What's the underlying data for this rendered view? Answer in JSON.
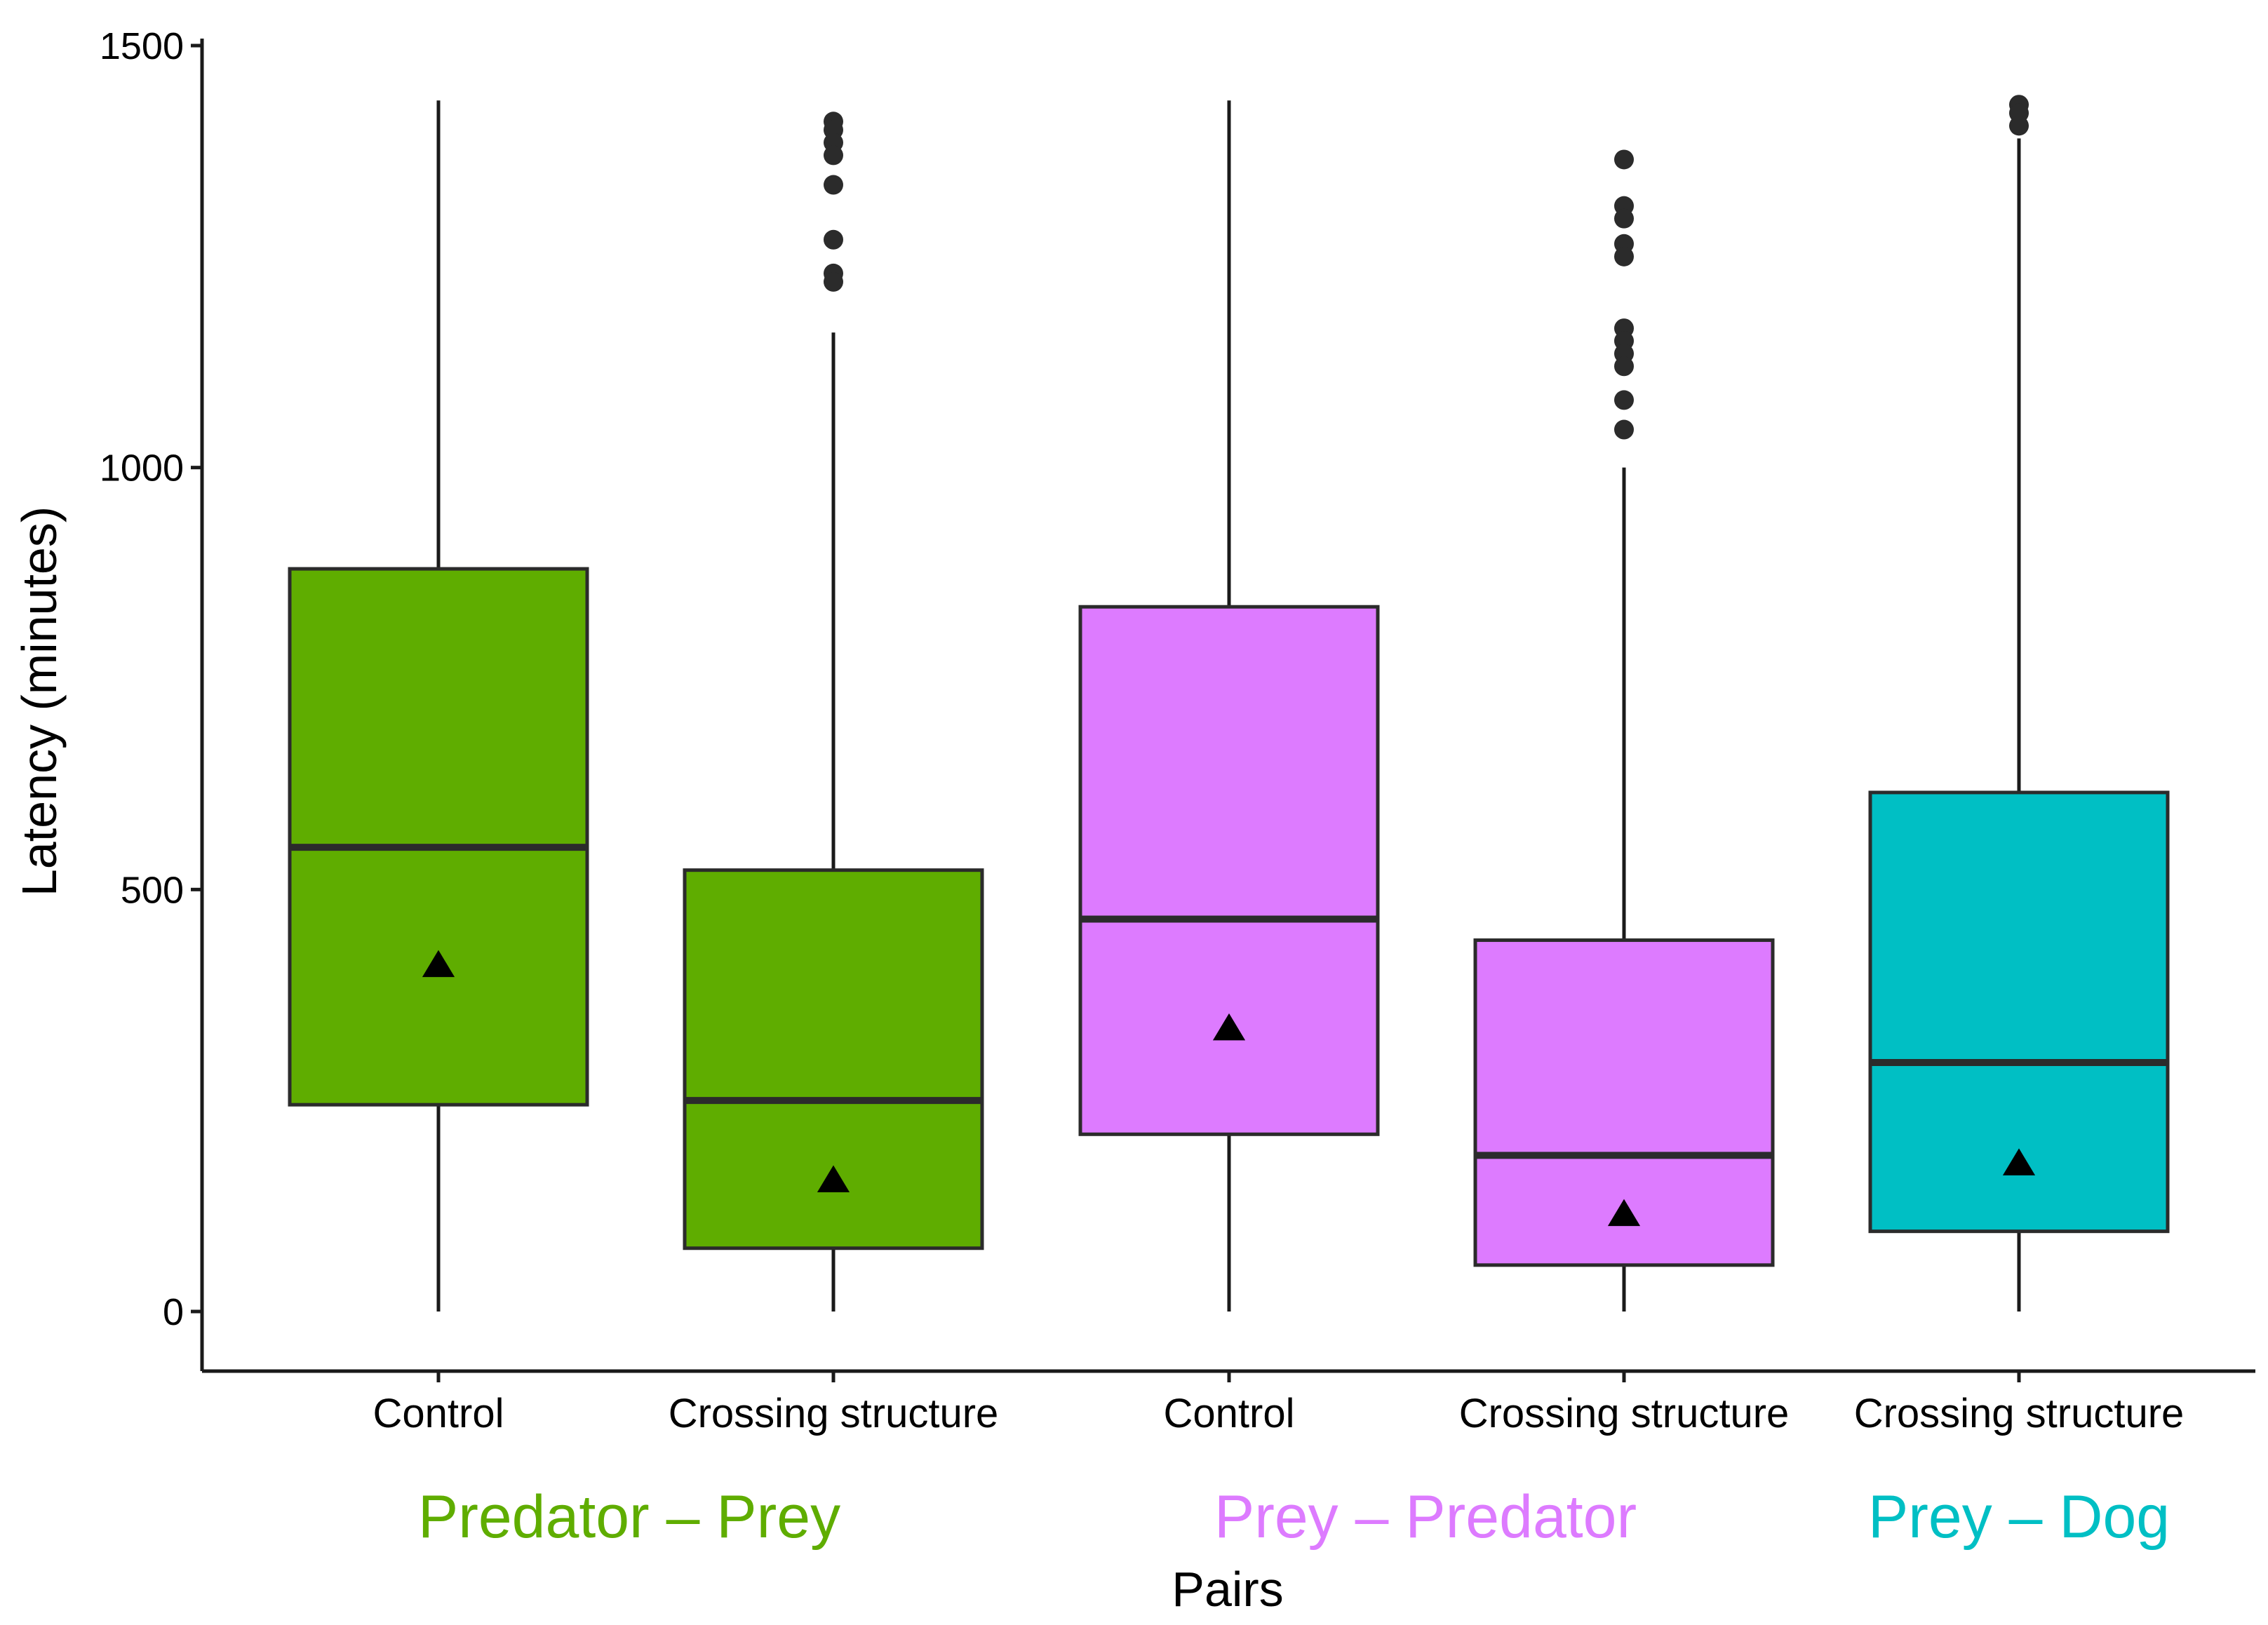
{
  "chart_data": {
    "type": "boxplot",
    "title": "",
    "xlabel": "Pairs",
    "ylabel": "Latency (minutes)",
    "ylim": [
      -70,
      1515
    ],
    "yticks": [
      0,
      500,
      1000,
      1500
    ],
    "yticklabels": [
      "0",
      "500",
      "1000",
      "1500"
    ],
    "grid": false,
    "groups": [
      {
        "name": "Predator – Prey",
        "color": "#5fad00"
      },
      {
        "name": "Prey – Predator",
        "color": "#dd7bff"
      },
      {
        "name": "Prey – Dog",
        "color": "#00bfc4"
      }
    ],
    "series": [
      {
        "category": "Control",
        "group": 0,
        "color": "#5fad00",
        "min": 0,
        "q1": 245,
        "median": 550,
        "q3": 880,
        "max": 1435,
        "mean": 410,
        "outliers": []
      },
      {
        "category": "Crossing structure",
        "group": 0,
        "color": "#5fad00",
        "min": 0,
        "q1": 75,
        "median": 250,
        "q3": 523,
        "max": 1160,
        "mean": 155,
        "outliers": [
          1410,
          1400,
          1385,
          1370,
          1335,
          1270,
          1230,
          1220
        ]
      },
      {
        "category": "Control",
        "group": 1,
        "color": "#dd7bff",
        "min": 0,
        "q1": 210,
        "median": 465,
        "q3": 835,
        "max": 1435,
        "mean": 335,
        "outliers": []
      },
      {
        "category": "Crossing structure",
        "group": 1,
        "color": "#dd7bff",
        "min": 0,
        "q1": 55,
        "median": 185,
        "q3": 440,
        "max": 1000,
        "mean": 115,
        "outliers": [
          1365,
          1310,
          1295,
          1265,
          1250,
          1165,
          1150,
          1135,
          1120,
          1080,
          1045
        ]
      },
      {
        "category": "Crossing structure",
        "group": 2,
        "color": "#00bfc4",
        "min": 0,
        "q1": 95,
        "median": 295,
        "q3": 615,
        "max": 1390,
        "mean": 175,
        "outliers": [
          1430,
          1420,
          1405
        ]
      }
    ]
  }
}
